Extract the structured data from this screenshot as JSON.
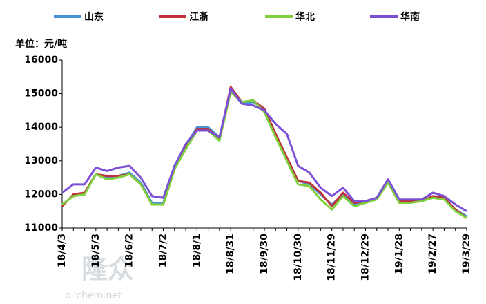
{
  "chart_data": {
    "type": "line",
    "unit_label": "单位：元/吨",
    "watermark": [
      "隆众",
      "oilchem.net"
    ],
    "categories": [
      "18/4/3",
      null,
      null,
      "18/5/3",
      null,
      null,
      "18/6/2",
      null,
      null,
      "18/7/2",
      null,
      null,
      "18/8/1",
      null,
      null,
      "18/8/31",
      null,
      null,
      "18/9/30",
      null,
      null,
      "18/10/30",
      null,
      null,
      "18/11/29",
      null,
      null,
      "18/12/29",
      null,
      null,
      "19/1/28",
      null,
      null,
      "19/2/27",
      null,
      null,
      "19/3/29"
    ],
    "series": [
      {
        "name": "山东",
        "color": "#4a90d9",
        "values": [
          11700,
          11950,
          12050,
          12600,
          12500,
          12550,
          12650,
          12350,
          11750,
          11750,
          12800,
          13450,
          14000,
          14000,
          13700,
          15100,
          14700,
          14750,
          14550,
          13800,
          13100,
          12400,
          12300,
          12000,
          11700,
          12000,
          11700,
          11800,
          11900,
          12400,
          11800,
          11800,
          11800,
          11950,
          11900,
          11550,
          11350
        ]
      },
      {
        "name": "江浙",
        "color": "#c0313a",
        "values": [
          11650,
          12000,
          12050,
          12600,
          12550,
          12550,
          12600,
          12300,
          11700,
          11700,
          12750,
          13400,
          13950,
          13950,
          13650,
          15200,
          14750,
          14800,
          14550,
          13800,
          13100,
          12400,
          12350,
          12050,
          11650,
          12050,
          11750,
          11800,
          11900,
          12400,
          11800,
          11800,
          11800,
          11950,
          11900,
          11550,
          11300
        ]
      },
      {
        "name": "华北",
        "color": "#7ed13a",
        "values": [
          11700,
          11950,
          12000,
          12600,
          12450,
          12500,
          12600,
          12300,
          11700,
          11700,
          12750,
          13350,
          13900,
          13900,
          13600,
          15050,
          14750,
          14800,
          14450,
          13700,
          13000,
          12300,
          12250,
          11850,
          11550,
          11950,
          11650,
          11750,
          11850,
          12350,
          11750,
          11750,
          11800,
          11900,
          11850,
          11500,
          11300
        ]
      },
      {
        "name": "华南",
        "color": "#7b4fd6",
        "values": [
          12050,
          12300,
          12300,
          12800,
          12700,
          12800,
          12850,
          12500,
          11950,
          11900,
          12850,
          13500,
          13900,
          13900,
          13700,
          15150,
          14700,
          14650,
          14500,
          14100,
          13800,
          12850,
          12650,
          12200,
          11950,
          12200,
          11800,
          11800,
          11900,
          12450,
          11850,
          11850,
          11850,
          12050,
          11950,
          11700,
          11500
        ]
      }
    ],
    "ylim": [
      11000,
      16000
    ],
    "yticks": [
      11000,
      12000,
      13000,
      14000,
      15000,
      16000
    ],
    "grid": false
  }
}
